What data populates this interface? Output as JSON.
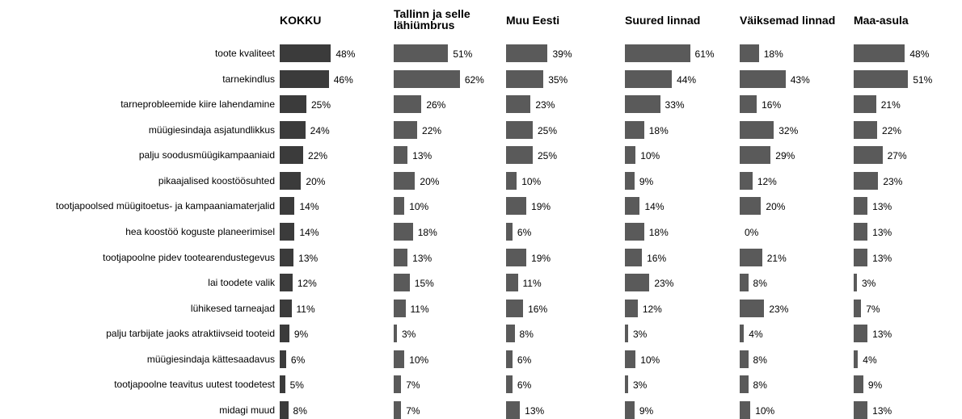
{
  "chart_data": {
    "type": "bar",
    "orientation": "horizontal",
    "categories": [
      "toote kvaliteet",
      "tarnekindlus",
      "tarneprobleemide kiire lahendamine",
      "müügiesindaja asjatundlikkus",
      "palju soodusmüügikampaaniaid",
      "pikaajalised koostöösuhted",
      "tootjapoolsed müügitoetus- ja kampaaniamaterjalid",
      "hea koostöö koguste planeerimisel",
      "tootjapoolne pidev tootearendustegevus",
      "lai toodete valik",
      "lühikesed tarneajad",
      "palju tarbijate jaoks atraktiivseid tooteid",
      "müügiesindaja kättesaadavus",
      "tootjapoolne teavitus uutest toodetest",
      "midagi muud"
    ],
    "series": [
      {
        "name": "KOKKU",
        "color": "#3b3b3b",
        "values": [
          48,
          46,
          25,
          24,
          22,
          20,
          14,
          14,
          13,
          12,
          11,
          9,
          6,
          5,
          8
        ],
        "value_labels": [
          "48%",
          "46%",
          "25%",
          "24%",
          "22%",
          "20%",
          "14%",
          "14%",
          "13%",
          "12%",
          "11%",
          "9%",
          "6%",
          "5%",
          "8%"
        ]
      },
      {
        "name": "Tallinn ja selle lähiümbrus",
        "color": "#5a5a5a",
        "values": [
          51,
          62,
          26,
          22,
          13,
          20,
          10,
          18,
          13,
          15,
          11,
          3,
          10,
          7,
          7
        ],
        "value_labels": [
          "51%",
          "62%",
          "26%",
          "22%",
          "13%",
          "20%",
          "10%",
          "18%",
          "13%",
          "15%",
          "11%",
          "3%",
          "10%",
          "7%",
          "7%"
        ]
      },
      {
        "name": "Muu Eesti",
        "color": "#5a5a5a",
        "values": [
          39,
          35,
          23,
          25,
          25,
          10,
          19,
          6,
          19,
          11,
          16,
          8,
          6,
          6,
          13
        ],
        "value_labels": [
          "39%",
          "35%",
          "23%",
          "25%",
          "25%",
          "10%",
          "19%",
          "6%",
          "19%",
          "11%",
          "16%",
          "8%",
          "6%",
          "6%",
          "13%"
        ]
      },
      {
        "name": "Suured linnad",
        "color": "#5a5a5a",
        "values": [
          61,
          44,
          33,
          18,
          10,
          9,
          14,
          18,
          16,
          23,
          12,
          3,
          10,
          3,
          9
        ],
        "value_labels": [
          "61%",
          "44%",
          "33%",
          "18%",
          "10%",
          "9%",
          "14%",
          "18%",
          "16%",
          "23%",
          "12%",
          "3%",
          "10%",
          "3%",
          "9%"
        ]
      },
      {
        "name": "Väiksemad linnad",
        "color": "#5a5a5a",
        "values": [
          18,
          43,
          16,
          32,
          29,
          12,
          20,
          0,
          21,
          8,
          23,
          4,
          8,
          8,
          10
        ],
        "value_labels": [
          "18%",
          "43%",
          "16%",
          "32%",
          "29%",
          "12%",
          "20%",
          "0%",
          "21%",
          "8%",
          "23%",
          "4%",
          "8%",
          "8%",
          "10%"
        ]
      },
      {
        "name": "Maa-asula",
        "color": "#5a5a5a",
        "values": [
          48,
          51,
          21,
          22,
          27,
          23,
          13,
          13,
          13,
          3,
          7,
          13,
          4,
          9,
          13
        ],
        "value_labels": [
          "48%",
          "51%",
          "21%",
          "22%",
          "27%",
          "23%",
          "13%",
          "13%",
          "13%",
          "3%",
          "7%",
          "13%",
          "4%",
          "9%",
          "13%"
        ]
      }
    ]
  }
}
